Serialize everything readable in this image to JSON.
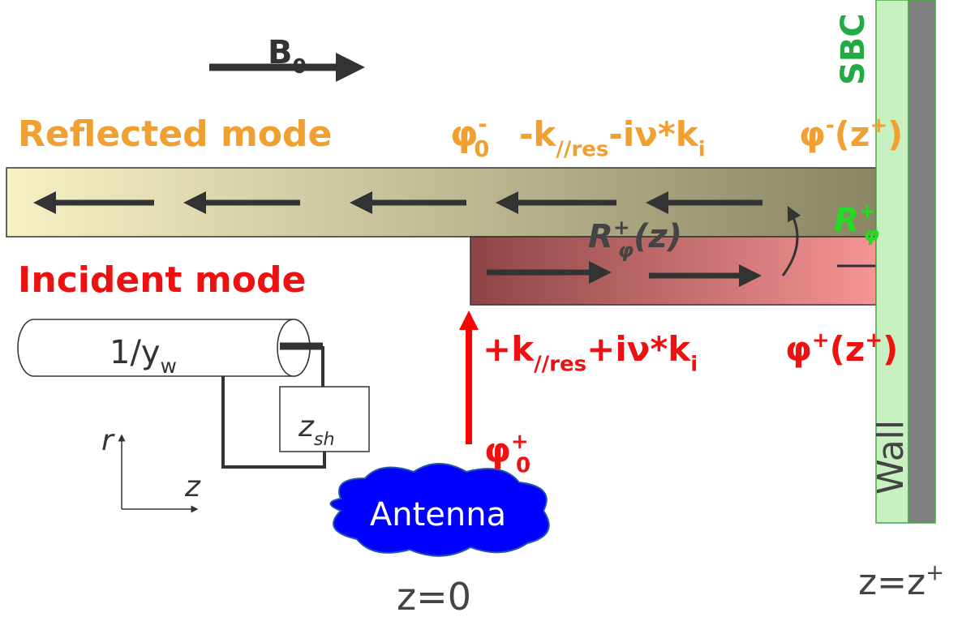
{
  "field": [
    {
      "text": "B",
      "sub": "0"
    }
  ],
  "reflected_mode": {
    "label": "Reflected mode",
    "phi_0": [
      {
        "text": "φ",
        "sub": "0",
        "sup": "-"
      }
    ],
    "k": [
      {
        "text": "-k",
        "sub": "//res"
      },
      {
        "text": "-iν*k",
        "sub": "i"
      }
    ],
    "phi_z": [
      {
        "text": "φ",
        "sup": "-"
      },
      {
        "text": "(z",
        "sup": "+"
      },
      {
        "text": ")"
      }
    ]
  },
  "incident_mode": {
    "label": "Incident mode",
    "phi_0": [
      {
        "text": "φ",
        "sub": "0",
        "sup": "+"
      }
    ],
    "k": [
      {
        "text": "+k",
        "sub": "//res"
      },
      {
        "text": "+iν*k",
        "sub": "i"
      }
    ],
    "phi_z": [
      {
        "text": "φ",
        "sup": "+"
      },
      {
        "text": "(z",
        "sup": "+"
      },
      {
        "text": ")"
      }
    ]
  },
  "reflection_z": [
    {
      "text": "R",
      "sub": "φ",
      "sup": "+"
    },
    {
      "text": "(z)"
    }
  ],
  "reflection_wall": [
    {
      "text": "R",
      "sub": "φ",
      "sup": "+"
    }
  ],
  "line_admittance": [
    {
      "text": "1/y",
      "sub": "w"
    }
  ],
  "sheath_impedance": [
    {
      "text": "z",
      "sub": "sh"
    }
  ],
  "axis_r": "r",
  "axis_z": "z",
  "antenna": "Antenna",
  "antenna_position": "z=0",
  "wall_position": [
    {
      "text": "z=z",
      "sup": "+"
    }
  ],
  "wall": "Wall",
  "sbc": "SBC"
}
